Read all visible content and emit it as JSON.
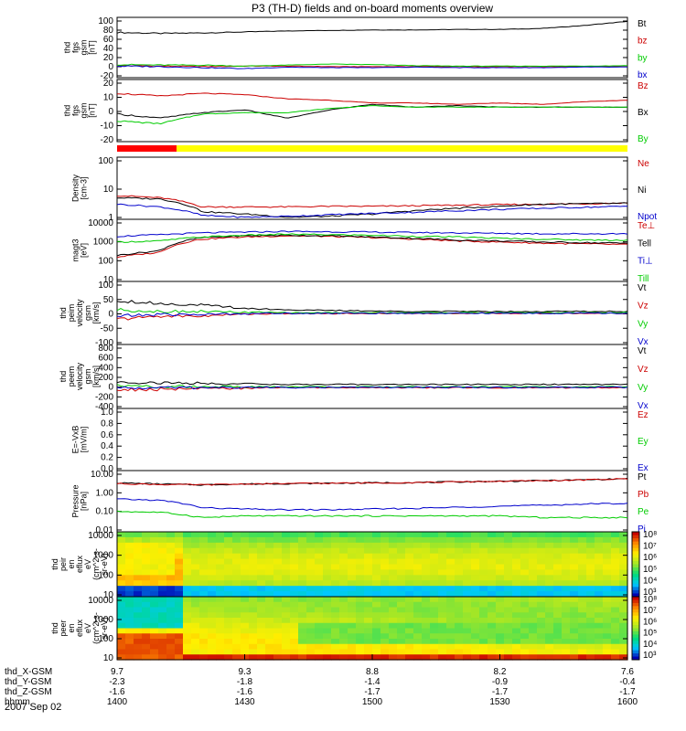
{
  "title": "P3 (TH-D) fields and on-board moments overview",
  "date_label": "2007 Sep 02",
  "chart_data": [
    {
      "type": "line",
      "panel": "fgs_gsm_total",
      "ylabel_lines": [
        "thd",
        "fgs",
        "gsm",
        "[nT]"
      ],
      "yticks": [
        "100",
        "80",
        "60",
        "40",
        "20",
        "0",
        "-20"
      ],
      "ylim": [
        -20,
        100
      ],
      "x": [
        1400,
        1410,
        1420,
        1430,
        1440,
        1450,
        1500,
        1510,
        1520,
        1530,
        1540,
        1550,
        1600
      ],
      "series": [
        {
          "name": "Bt",
          "color": "#000000",
          "values": [
            70,
            68,
            69,
            71,
            73,
            74,
            75,
            75,
            76,
            76,
            78,
            84,
            92
          ]
        },
        {
          "name": "bz",
          "color": "#cc0000",
          "values": [
            4,
            3,
            2,
            3,
            3,
            2,
            2,
            2,
            2,
            2,
            2,
            2,
            2
          ]
        },
        {
          "name": "by",
          "color": "#00cc00",
          "values": [
            6,
            5,
            5,
            3,
            5,
            7,
            6,
            4,
            3,
            3,
            3,
            3,
            4
          ]
        },
        {
          "name": "bx",
          "color": "#0000cc",
          "values": [
            3,
            2,
            0,
            -2,
            1,
            0,
            0,
            1,
            0,
            0,
            0,
            1,
            1
          ]
        }
      ]
    },
    {
      "type": "line",
      "panel": "fgs_gsm_components",
      "ylabel_lines": [
        "thd",
        "fgs",
        "gsm",
        "[nT]"
      ],
      "yticks": [
        "20",
        "10",
        "0",
        "-10",
        "-20"
      ],
      "ylim": [
        -25,
        20
      ],
      "x": [
        1400,
        1410,
        1420,
        1430,
        1440,
        1450,
        1500,
        1510,
        1520,
        1530,
        1540,
        1550,
        1600
      ],
      "series": [
        {
          "name": "Bz",
          "color": "#cc0000",
          "values": [
            10,
            8,
            10,
            9,
            6,
            5,
            3,
            3,
            2,
            3,
            2,
            4,
            5
          ]
        },
        {
          "name": "Bx",
          "color": "#000000",
          "values": [
            -5,
            -8,
            -4,
            -2,
            -8,
            -2,
            2,
            0,
            1,
            0,
            0,
            0,
            0
          ]
        },
        {
          "name": "By",
          "color": "#00cc00",
          "values": [
            -10,
            -12,
            -5,
            -4,
            -4,
            -1,
            1,
            0,
            0,
            0,
            0,
            0,
            0
          ]
        }
      ]
    },
    {
      "type": "line",
      "panel": "density",
      "ylabel_lines": [
        "Density",
        "[cm-3]"
      ],
      "yticks": [
        "100",
        "10",
        "1"
      ],
      "ylim": [
        0.4,
        300
      ],
      "log": true,
      "x": [
        1400,
        1410,
        1420,
        1430,
        1440,
        1450,
        1500,
        1510,
        1520,
        1530,
        1540,
        1550,
        1600
      ],
      "series": [
        {
          "name": "Ne",
          "color": "#cc0000",
          "values": [
            5,
            4,
            1.5,
            1.5,
            1.5,
            1.6,
            1.6,
            1.7,
            1.8,
            1.9,
            2,
            2.1,
            2.3
          ]
        },
        {
          "name": "Ni",
          "color": "#000000",
          "values": [
            4,
            3.5,
            0.9,
            0.7,
            0.5,
            0.55,
            0.7,
            1.0,
            1.3,
            1.6,
            2,
            2.1,
            2.2
          ]
        },
        {
          "name": "Npot",
          "color": "#0000cc",
          "values": [
            2,
            1.5,
            0.6,
            0.5,
            0.55,
            0.65,
            0.75,
            0.85,
            1.0,
            1.15,
            1.3,
            1.45,
            1.6
          ]
        }
      ]
    },
    {
      "type": "line",
      "panel": "temperature",
      "ylabel_lines": [
        "magt3",
        "[eV]"
      ],
      "yticks": [
        "10000",
        "1000",
        "100",
        "10"
      ],
      "ylim": [
        10,
        10000
      ],
      "log": true,
      "x": [
        1400,
        1410,
        1420,
        1430,
        1440,
        1450,
        1500,
        1510,
        1520,
        1530,
        1540,
        1550,
        1600
      ],
      "series": [
        {
          "name": "Te⊥",
          "color": "#cc0000",
          "values": [
            150,
            250,
            1100,
            1400,
            1600,
            1500,
            1300,
            1100,
            900,
            800,
            700,
            650,
            600
          ]
        },
        {
          "name": "Tell",
          "color": "#000000",
          "values": [
            180,
            300,
            1300,
            1600,
            1700,
            1600,
            1400,
            1200,
            1000,
            900,
            800,
            750,
            700
          ]
        },
        {
          "name": "Ti⊥",
          "color": "#0000cc",
          "values": [
            1500,
            1800,
            2200,
            2400,
            2600,
            2500,
            2400,
            2300,
            2200,
            2100,
            2000,
            2000,
            2000
          ]
        },
        {
          "name": "Till",
          "color": "#00cc00",
          "values": [
            800,
            900,
            1400,
            1700,
            1900,
            1800,
            1700,
            1500,
            1400,
            1200,
            1100,
            1000,
            1000
          ]
        }
      ]
    },
    {
      "type": "line",
      "panel": "peim_velocity",
      "ylabel_lines": [
        "thd",
        "peim",
        "velocity",
        "gsm",
        "[km/s]"
      ],
      "yticks": [
        "100",
        "50",
        "0",
        "-50",
        "-100"
      ],
      "ylim": [
        -100,
        100
      ],
      "x": [
        1400,
        1410,
        1420,
        1430,
        1440,
        1450,
        1500,
        1510,
        1520,
        1530,
        1540,
        1550,
        1600
      ],
      "series": [
        {
          "name": "Vt",
          "color": "#000000",
          "values": [
            40,
            30,
            25,
            15,
            10,
            8,
            6,
            5,
            5,
            5,
            5,
            5,
            5
          ]
        },
        {
          "name": "Vz",
          "color": "#cc0000",
          "values": [
            -20,
            -10,
            -10,
            -3,
            -2,
            -2,
            -1,
            -1,
            -1,
            -1,
            -1,
            -1,
            -1
          ]
        },
        {
          "name": "Vy",
          "color": "#00cc00",
          "values": [
            10,
            5,
            5,
            2,
            1,
            1,
            1,
            1,
            1,
            1,
            1,
            1,
            1
          ]
        },
        {
          "name": "Vx",
          "color": "#0000cc",
          "values": [
            -10,
            -5,
            -5,
            -2,
            -1,
            -1,
            -1,
            -1,
            -1,
            -1,
            -1,
            -1,
            -1
          ]
        }
      ]
    },
    {
      "type": "line",
      "panel": "peem_velocity",
      "ylabel_lines": [
        "thd",
        "peem",
        "velocity",
        "gsm",
        "[km/s]"
      ],
      "yticks": [
        "800",
        "600",
        "400",
        "200",
        "0",
        "-200",
        "-400"
      ],
      "ylim": [
        -400,
        800
      ],
      "x": [
        1400,
        1410,
        1420,
        1430,
        1440,
        1450,
        1500,
        1510,
        1520,
        1530,
        1540,
        1550,
        1600
      ],
      "series": [
        {
          "name": "Vt",
          "color": "#000000",
          "values": [
            100,
            80,
            70,
            60,
            50,
            50,
            50,
            50,
            50,
            50,
            50,
            50,
            50
          ]
        },
        {
          "name": "Vz",
          "color": "#cc0000",
          "values": [
            -50,
            -40,
            -30,
            -20,
            -10,
            -10,
            -10,
            -10,
            -10,
            -10,
            -10,
            -10,
            -10
          ]
        },
        {
          "name": "Vy",
          "color": "#00cc00",
          "values": [
            20,
            10,
            10,
            5,
            5,
            5,
            5,
            5,
            5,
            5,
            5,
            5,
            5
          ]
        },
        {
          "name": "Vx",
          "color": "#0000cc",
          "values": [
            -20,
            -10,
            -10,
            -5,
            -5,
            -5,
            -5,
            -5,
            -5,
            -5,
            -5,
            -5,
            -5
          ]
        }
      ]
    },
    {
      "type": "line",
      "panel": "electric_field",
      "ylabel_lines": [
        "E=-VxB",
        "[mV/m]"
      ],
      "yticks": [
        "1.0",
        "0.8",
        "0.6",
        "0.4",
        "0.2",
        "0.0"
      ],
      "ylim": [
        0,
        1
      ],
      "series": [
        {
          "name": "Ez",
          "color": "#cc0000",
          "values": []
        },
        {
          "name": "Ey",
          "color": "#00cc00",
          "values": []
        },
        {
          "name": "Ex",
          "color": "#0000cc",
          "values": []
        }
      ]
    },
    {
      "type": "line",
      "panel": "pressure",
      "ylabel_lines": [
        "Pressure",
        "[nPa]"
      ],
      "yticks": [
        "10.00",
        "1.00",
        "0.10",
        "0.01"
      ],
      "ylim": [
        0.01,
        10
      ],
      "log": true,
      "x": [
        1400,
        1410,
        1420,
        1430,
        1440,
        1450,
        1500,
        1510,
        1520,
        1530,
        1540,
        1550,
        1600
      ],
      "series": [
        {
          "name": "Pt",
          "color": "#000000",
          "values": [
            2.5,
            2.2,
            2.0,
            2.2,
            2.3,
            2.4,
            2.5,
            2.6,
            2.8,
            3.0,
            3.2,
            3.5,
            4.0
          ]
        },
        {
          "name": "Pb",
          "color": "#cc0000",
          "values": [
            2.3,
            2.1,
            2.0,
            2.2,
            2.3,
            2.4,
            2.5,
            2.6,
            2.8,
            3.0,
            3.2,
            3.5,
            4.0
          ]
        },
        {
          "name": "Pe",
          "color": "#00cc00",
          "values": [
            0.1,
            0.09,
            0.05,
            0.06,
            0.06,
            0.06,
            0.06,
            0.06,
            0.06,
            0.06,
            0.05,
            0.05,
            0.05
          ]
        },
        {
          "name": "Pi",
          "color": "#0000cc",
          "values": [
            0.4,
            0.35,
            0.15,
            0.13,
            0.12,
            0.12,
            0.13,
            0.14,
            0.16,
            0.18,
            0.2,
            0.23,
            0.25
          ]
        }
      ]
    },
    {
      "type": "heatmap",
      "panel": "peir_en_eflux",
      "ylabel_lines": [
        "thd",
        "peir",
        "en",
        "eflux",
        "eV",
        "(cm^2-s-",
        "sr-eV)"
      ],
      "yticks": [
        "10000",
        "1000",
        "100",
        "10"
      ],
      "ylim": [
        8,
        20000
      ],
      "log": true,
      "colorbar_ticks": [
        "10⁸",
        "10⁷",
        "10⁶",
        "10⁵",
        "10⁴",
        "10³"
      ],
      "description_bands": [
        {
          "from": 1400,
          "to": 1420,
          "low_energy": "blue",
          "mid_energy": "yellow"
        },
        {
          "from": 1420,
          "to": 1600,
          "low_energy": "cyan",
          "mid_energy": "green"
        }
      ]
    },
    {
      "type": "heatmap",
      "panel": "peer_en_eflux",
      "ylabel_lines": [
        "thd",
        "peer",
        "en",
        "eflux",
        "eV",
        "(cm^2-s-",
        "sr-eV)"
      ],
      "yticks": [
        "10000",
        "1000",
        "100",
        "10"
      ],
      "ylim": [
        8,
        20000
      ],
      "log": true,
      "colorbar_ticks": [
        "10⁸",
        "10⁷",
        "10⁶",
        "10⁵",
        "10⁴",
        "10³"
      ]
    }
  ],
  "xaxis": {
    "row_labels": [
      "thd_X-GSM",
      "thd_Y-GSM",
      "thd_Z-GSM",
      "hhmm"
    ],
    "ticks": [
      {
        "x": 1400,
        "rows": [
          "9.7",
          "-2.3",
          "-1.6",
          "1400"
        ]
      },
      {
        "x": 1430,
        "rows": [
          "9.3",
          "-1.8",
          "-1.6",
          "1430"
        ]
      },
      {
        "x": 1500,
        "rows": [
          "8.8",
          "-1.4",
          "-1.7",
          "1500"
        ]
      },
      {
        "x": 1530,
        "rows": [
          "8.2",
          "-0.9",
          "-1.7",
          "1530"
        ]
      },
      {
        "x": 1600,
        "rows": [
          "7.6",
          "-0.4",
          "-1.7",
          "1600"
        ]
      }
    ]
  },
  "mode_bar": [
    {
      "from": 1400,
      "to": 1414,
      "color": "#ff0000"
    },
    {
      "from": 1414,
      "to": 1600,
      "color": "#ffff00"
    }
  ],
  "colors": {
    "axis": "#000000",
    "red": "#cc0000",
    "green": "#00cc00",
    "blue": "#0000cc"
  }
}
